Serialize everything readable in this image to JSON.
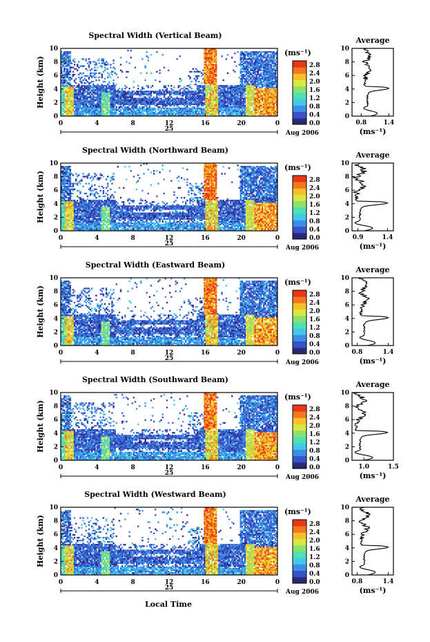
{
  "chart_data": [
    {
      "type": "heatmap",
      "title": "Spectral Width (Vertical Beam)",
      "ylabel": "Height (km)",
      "yticks": [
        "0",
        "2",
        "4",
        "6",
        "8",
        "10"
      ],
      "xticks": [
        "0",
        "4",
        "8",
        "12",
        "16",
        "20",
        "0"
      ],
      "date_label": "25",
      "date_suffix": "Aug 2006",
      "colorbar": {
        "unit": "(ms⁻¹)",
        "ticks": [
          "0.0",
          "0.4",
          "0.8",
          "1.2",
          "1.6",
          "2.0",
          "2.4",
          "2.8"
        ]
      },
      "average": {
        "title": "Average",
        "xticks": [
          "0.8",
          "1.4"
        ],
        "xlim": [
          0.6,
          1.5
        ],
        "xlabel": "(ms⁻¹)",
        "yticks": [
          "0",
          "2",
          "4",
          "6",
          "8",
          "10"
        ]
      }
    },
    {
      "type": "heatmap",
      "title": "Spectral Width (Northward Beam)",
      "ylabel": "Height (km)",
      "yticks": [
        "0",
        "2",
        "4",
        "6",
        "8",
        "10"
      ],
      "xticks": [
        "0",
        "4",
        "8",
        "12",
        "16",
        "20",
        "0"
      ],
      "date_label": "25",
      "date_suffix": "Aug 2006",
      "colorbar": {
        "unit": "(ms⁻¹)",
        "ticks": [
          "0.0",
          "0.4",
          "0.8",
          "1.2",
          "1.6",
          "2.0",
          "2.4",
          "2.8"
        ]
      },
      "average": {
        "title": "Average",
        "xticks": [
          "0.9",
          "1.4"
        ],
        "xlim": [
          0.8,
          1.5
        ],
        "xlabel": "(ms⁻¹)",
        "yticks": [
          "0",
          "2",
          "4",
          "6",
          "8",
          "10"
        ]
      }
    },
    {
      "type": "heatmap",
      "title": "Spectral Width (Eastward Beam)",
      "ylabel": "Height (km)",
      "yticks": [
        "0",
        "2",
        "4",
        "6",
        "8",
        "10"
      ],
      "xticks": [
        "0",
        "4",
        "8",
        "12",
        "16",
        "20",
        "0"
      ],
      "date_label": "25",
      "date_suffix": "Aug 2006",
      "colorbar": {
        "unit": "(ms⁻¹)",
        "ticks": [
          "0.0",
          "0.4",
          "0.8",
          "1.2",
          "1.6",
          "2.0",
          "2.4",
          "2.8"
        ]
      },
      "average": {
        "title": "Average",
        "xticks": [
          "0.8",
          "1.4"
        ],
        "xlim": [
          0.7,
          1.5
        ],
        "xlabel": "(ms⁻¹)",
        "yticks": [
          "0",
          "2",
          "4",
          "6",
          "8",
          "10"
        ]
      }
    },
    {
      "type": "heatmap",
      "title": "Spectral Width (Southward Beam)",
      "ylabel": "Height (km)",
      "yticks": [
        "0",
        "2",
        "4",
        "6",
        "8",
        "10"
      ],
      "xticks": [
        "0",
        "4",
        "8",
        "12",
        "16",
        "20",
        "0"
      ],
      "date_label": "25",
      "date_suffix": "Aug 2006",
      "colorbar": {
        "unit": "(ms⁻¹)",
        "ticks": [
          "0.0",
          "0.4",
          "0.8",
          "1.2",
          "1.6",
          "2.0",
          "2.4",
          "2.8"
        ]
      },
      "average": {
        "title": "Average",
        "xticks": [
          "1.0",
          "1.5"
        ],
        "xlim": [
          0.8,
          1.5
        ],
        "xlabel": "(ms⁻¹)",
        "yticks": [
          "0",
          "2",
          "4",
          "6",
          "8",
          "10"
        ]
      }
    },
    {
      "type": "heatmap",
      "title": "Spectral Width (Westward Beam)",
      "ylabel": "Height (km)",
      "yticks": [
        "0",
        "2",
        "4",
        "6",
        "8",
        "10"
      ],
      "xticks": [
        "0",
        "4",
        "8",
        "12",
        "16",
        "20",
        "0"
      ],
      "date_label": "25",
      "date_suffix": "Aug 2006",
      "colorbar": {
        "unit": "(ms⁻¹)",
        "ticks": [
          "0.0",
          "0.4",
          "0.8",
          "1.2",
          "1.6",
          "2.0",
          "2.4",
          "2.8"
        ]
      },
      "average": {
        "title": "Average",
        "xticks": [
          "0.8",
          "1.4"
        ],
        "xlim": [
          0.7,
          1.5
        ],
        "xlabel": "(ms⁻¹)",
        "yticks": [
          "0",
          "2",
          "4",
          "6",
          "8",
          "10"
        ]
      }
    }
  ],
  "xlabel": "Local Time",
  "colors": {
    "colormap": [
      "#2c2c8c",
      "#3a52c8",
      "#3c8ee6",
      "#44c8e8",
      "#4ee0b0",
      "#8ce070",
      "#d8e840",
      "#f8c028",
      "#f07820",
      "#e83818"
    ],
    "axes": "#000000"
  }
}
